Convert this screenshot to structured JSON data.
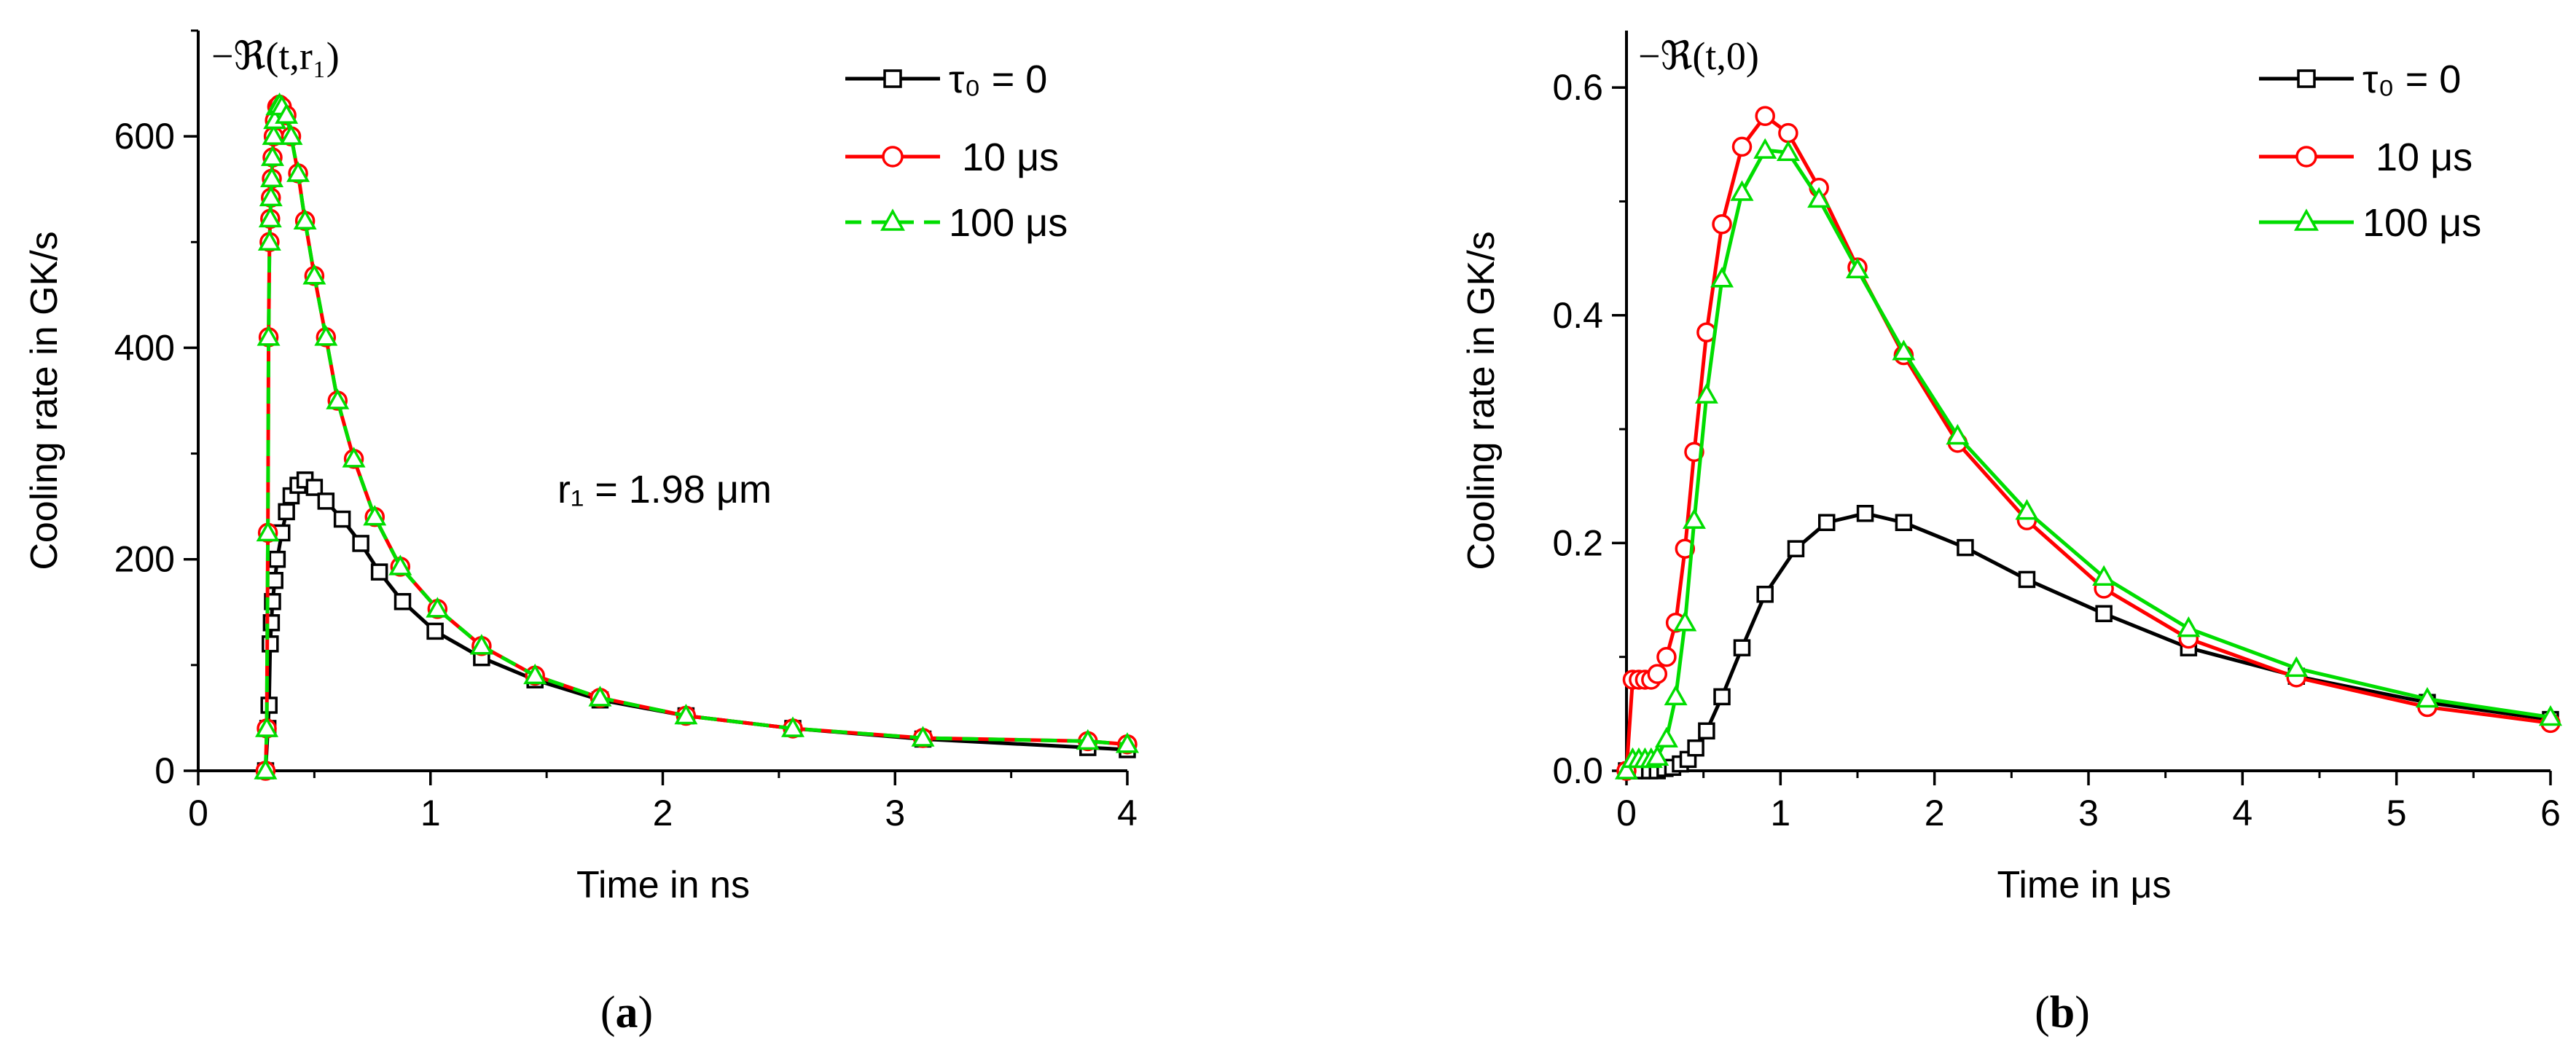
{
  "chart_data": [
    {
      "type": "line",
      "panel_label": "a",
      "corner_label": "−ℜ(t,r₁)",
      "annotation": "r₁ = 1.98 μm",
      "xlabel": "Time in ns",
      "ylabel": "Cooling rate in GK/s",
      "xlim": [
        0,
        4
      ],
      "ylim": [
        0,
        700
      ],
      "xticks": [
        0,
        1,
        2,
        3,
        4
      ],
      "yticks": [
        0,
        200,
        400,
        600
      ],
      "xtick_labels": [
        "0",
        "1",
        "2",
        "3",
        "4"
      ],
      "ytick_labels": [
        "0",
        "200",
        "400",
        "600"
      ],
      "legend_position": "top-right",
      "series": [
        {
          "name": "τ₀ = 0",
          "color": "#000000",
          "marker": "square",
          "dash": "solid",
          "x": [
            0.29,
            0.3,
            0.305,
            0.31,
            0.315,
            0.32,
            0.33,
            0.34,
            0.36,
            0.38,
            0.4,
            0.43,
            0.46,
            0.5,
            0.55,
            0.62,
            0.7,
            0.78,
            0.88,
            1.02,
            1.22,
            1.45,
            1.73,
            2.1,
            2.56,
            3.12,
            3.83,
            4.0
          ],
          "y": [
            0,
            40,
            62,
            120,
            140,
            160,
            180,
            200,
            225,
            245,
            260,
            270,
            275,
            268,
            255,
            238,
            215,
            188,
            160,
            132,
            107,
            86,
            67,
            52,
            40,
            30,
            22,
            20
          ]
        },
        {
          "name": "10 μs",
          "color": "#ff0000",
          "marker": "circle",
          "dash": "solid",
          "x": [
            0.29,
            0.295,
            0.3,
            0.303,
            0.307,
            0.31,
            0.313,
            0.317,
            0.32,
            0.325,
            0.33,
            0.34,
            0.35,
            0.36,
            0.38,
            0.4,
            0.43,
            0.46,
            0.5,
            0.55,
            0.6,
            0.67,
            0.76,
            0.87,
            1.03,
            1.22,
            1.45,
            1.73,
            2.1,
            2.56,
            3.12,
            3.83,
            4.0
          ],
          "y": [
            0,
            40,
            225,
            410,
            500,
            522,
            542,
            560,
            580,
            600,
            615,
            628,
            630,
            628,
            620,
            600,
            565,
            520,
            468,
            410,
            350,
            295,
            240,
            193,
            153,
            118,
            90,
            69,
            52,
            40,
            31,
            28,
            25
          ]
        },
        {
          "name": "100 μs",
          "color": "#00dd00",
          "marker": "triangle",
          "dash": "dashed",
          "x": [
            0.29,
            0.295,
            0.3,
            0.303,
            0.307,
            0.31,
            0.313,
            0.317,
            0.32,
            0.325,
            0.33,
            0.34,
            0.35,
            0.36,
            0.38,
            0.4,
            0.43,
            0.46,
            0.5,
            0.55,
            0.6,
            0.67,
            0.76,
            0.87,
            1.03,
            1.22,
            1.45,
            1.73,
            2.1,
            2.56,
            3.12,
            3.83,
            4.0
          ],
          "y": [
            0,
            40,
            225,
            410,
            500,
            522,
            542,
            560,
            580,
            600,
            615,
            628,
            630,
            628,
            620,
            600,
            565,
            520,
            468,
            410,
            350,
            295,
            240,
            193,
            153,
            118,
            90,
            69,
            52,
            40,
            31,
            28,
            25
          ]
        }
      ]
    },
    {
      "type": "line",
      "panel_label": "b",
      "corner_label": "−ℜ(t,0)",
      "xlabel": "Time in μs",
      "ylabel": "Cooling rate in GK/s",
      "xlim": [
        0,
        6
      ],
      "ylim": [
        0,
        0.65
      ],
      "xticks": [
        0,
        1,
        2,
        3,
        4,
        5,
        6
      ],
      "yticks": [
        0,
        0.2,
        0.4,
        0.6
      ],
      "xtick_labels": [
        "0",
        "1",
        "2",
        "3",
        "4",
        "5",
        "6"
      ],
      "ytick_labels": [
        "0.0",
        "0.2",
        "0.4",
        "0.6"
      ],
      "legend_position": "top-right",
      "series": [
        {
          "name": "τ₀ = 0",
          "color": "#000000",
          "marker": "square",
          "dash": "solid",
          "x": [
            0,
            0.05,
            0.1,
            0.15,
            0.2,
            0.25,
            0.3,
            0.35,
            0.4,
            0.45,
            0.52,
            0.62,
            0.75,
            0.9,
            1.1,
            1.3,
            1.55,
            1.8,
            2.2,
            2.6,
            3.1,
            3.65,
            4.35,
            5.2,
            6.0
          ],
          "y": [
            0,
            0,
            0,
            0,
            0,
            0.002,
            0.003,
            0.006,
            0.01,
            0.02,
            0.035,
            0.065,
            0.108,
            0.155,
            0.195,
            0.218,
            0.226,
            0.218,
            0.196,
            0.168,
            0.138,
            0.108,
            0.083,
            0.06,
            0.045
          ]
        },
        {
          "name": "10 μs",
          "color": "#ff0000",
          "marker": "circle",
          "dash": "solid",
          "x": [
            0,
            0.04,
            0.08,
            0.12,
            0.16,
            0.2,
            0.26,
            0.32,
            0.38,
            0.44,
            0.52,
            0.62,
            0.75,
            0.9,
            1.05,
            1.25,
            1.5,
            1.8,
            2.15,
            2.6,
            3.1,
            3.65,
            4.35,
            5.2,
            6.0
          ],
          "y": [
            0,
            0.08,
            0.08,
            0.08,
            0.08,
            0.085,
            0.1,
            0.13,
            0.195,
            0.28,
            0.385,
            0.48,
            0.548,
            0.575,
            0.56,
            0.512,
            0.442,
            0.365,
            0.288,
            0.22,
            0.16,
            0.116,
            0.082,
            0.056,
            0.042
          ]
        },
        {
          "name": "100 μs",
          "color": "#00dd00",
          "marker": "triangle",
          "dash": "solid",
          "x": [
            0,
            0.04,
            0.08,
            0.12,
            0.16,
            0.2,
            0.26,
            0.32,
            0.38,
            0.44,
            0.52,
            0.62,
            0.75,
            0.9,
            1.05,
            1.25,
            1.5,
            1.8,
            2.15,
            2.6,
            3.1,
            3.65,
            4.35,
            5.2,
            6.0
          ],
          "y": [
            0,
            0.01,
            0.01,
            0.01,
            0.01,
            0.012,
            0.028,
            0.065,
            0.13,
            0.22,
            0.33,
            0.432,
            0.508,
            0.545,
            0.543,
            0.502,
            0.44,
            0.368,
            0.294,
            0.228,
            0.17,
            0.125,
            0.09,
            0.063,
            0.047
          ]
        }
      ]
    }
  ]
}
